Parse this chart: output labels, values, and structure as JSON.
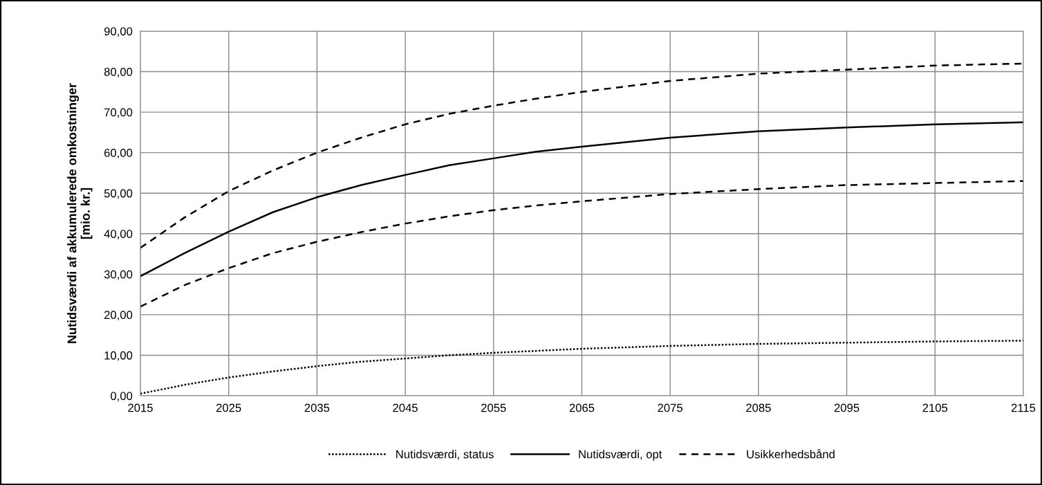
{
  "chart_data": {
    "type": "line",
    "ylabel": "Nutidsværdi af akkumulerede omkostninger\n[mio. kr.]",
    "x": [
      2015,
      2020,
      2025,
      2030,
      2035,
      2040,
      2045,
      2050,
      2055,
      2060,
      2065,
      2075,
      2085,
      2095,
      2105,
      2115
    ],
    "series": [
      {
        "name": "Nutidsværdi, status",
        "color": "#000000",
        "line_style": "dotted",
        "values": [
          0.5,
          2.7,
          4.5,
          6.0,
          7.3,
          8.4,
          9.2,
          10.0,
          10.6,
          11.1,
          11.6,
          12.3,
          12.8,
          13.1,
          13.4,
          13.6
        ]
      },
      {
        "name": "Nutidsværdi, opt",
        "color": "#000000",
        "line_style": "solid",
        "values": [
          29.5,
          35.2,
          40.5,
          45.3,
          49.0,
          52.0,
          54.5,
          56.9,
          58.6,
          60.3,
          61.5,
          63.7,
          65.3,
          66.2,
          67.0,
          67.5
        ]
      },
      {
        "name": "Usikkerhedsbånd",
        "color": "#000000",
        "line_style": "dashed",
        "values": [
          36.5,
          44.0,
          50.5,
          55.6,
          60.0,
          63.7,
          67.0,
          69.6,
          71.6,
          73.4,
          75.0,
          77.7,
          79.5,
          80.5,
          81.5,
          82.0
        ]
      },
      {
        "color": "#000000",
        "line_style": "dashed",
        "values": [
          22.0,
          27.3,
          31.5,
          35.2,
          38.0,
          40.4,
          42.5,
          44.3,
          45.8,
          47.0,
          48.0,
          49.8,
          51.0,
          52.0,
          52.5,
          53.0
        ]
      }
    ],
    "xlim": [
      2015,
      2115
    ],
    "xticks": [
      2015,
      2025,
      2035,
      2045,
      2055,
      2065,
      2075,
      2085,
      2095,
      2105,
      2115
    ],
    "ylim": [
      0,
      90
    ],
    "yticks": [
      {
        "value": 0,
        "label": "0,00"
      },
      {
        "value": 10,
        "label": "10,00"
      },
      {
        "value": 20,
        "label": "20,00"
      },
      {
        "value": 30,
        "label": "30,00"
      },
      {
        "value": 40,
        "label": "40,00"
      },
      {
        "value": 50,
        "label": "50,00"
      },
      {
        "value": 60,
        "label": "60,00"
      },
      {
        "value": 70,
        "label": "70,00"
      },
      {
        "value": 80,
        "label": "80,00"
      },
      {
        "value": 90,
        "label": "90,00"
      }
    ],
    "grid": true,
    "legend": "bottom",
    "marker": "none"
  }
}
